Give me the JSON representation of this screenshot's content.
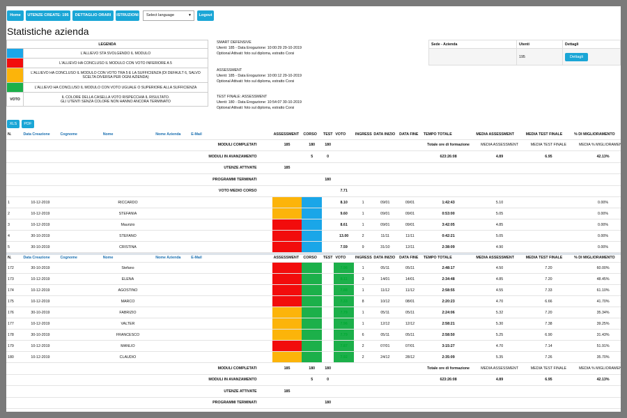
{
  "nav": {
    "home": "Home",
    "utenze": "UTENZE CREATE: 195",
    "dettaglio": "DETTAGLIO ORARI",
    "istruzioni": "ISTRUZIONI",
    "language": "Select language",
    "logout": "Logout"
  },
  "title": "Statistiche azienda",
  "legend": {
    "title": "LEGENDA",
    "items": [
      {
        "color": "#1aa6e8",
        "text": "L'ALLIEVO STA SVOLGENDO IL MODULO"
      },
      {
        "color": "#f20c0c",
        "text": "L'ALLIEVO HA CONCLUSO IL MODULO CON VOTO INFERIORE A 5"
      },
      {
        "color": "#fcb40a",
        "text": "L'ALLIEVO HA CONCLUSO IL MODULO CON VOTO TRA 5 E LA SUFFICIENZA (DI DEFAULT 6, SALVO SCELTA DIVERSA PER OGNI AZIENDA)"
      },
      {
        "color": "#1cb04a",
        "text": "L'ALLIEVO HA CONCLUSO IL MODULO CON VOTO UGUALE O SUPERIORE ALLA SUFFICIENZA"
      }
    ],
    "voto_label": "VOTO",
    "voto_text": "IL COLORE DELLA CASELLA VOTO RISPECCHIA IL RISULTATO.",
    "voto_text2": "GLI UTENTI SENZA COLORE NON HANNO ANCORA TERMINATO"
  },
  "courses": [
    {
      "name": "SMART DEFENSIVE",
      "line1": "Utenti: 185 - Data Erogazione: 10:00:29 29-10-2019",
      "line2": "Optional Attivati: foto sul diploma, estratto Corsi"
    },
    {
      "name": "ASSESSMENT",
      "line1": "Utenti: 185 - Data Erogazione: 10:00:12 29-10-2019",
      "line2": "Optional Attivati: foto sul diploma, estratto Corsi"
    },
    {
      "name": "TEST FINALE: ASSESSMENT",
      "line1": "Utenti: 180 - Data Erogazione: 10:54:07 30-10-2019",
      "line2": "Optional Attivati: foto sul diploma, estratto Corsi"
    }
  ],
  "sede": {
    "h1": "Sede - Azienda",
    "h2": "Utenti",
    "h3": "Dettagli",
    "utenti": "195",
    "btn": "Dettagli"
  },
  "export": {
    "xls": "XLS",
    "pdf": "PDF"
  },
  "headers": {
    "n": "N.",
    "data": "Data Creazione",
    "cognome": "Cognome",
    "nome": "Nome",
    "azienda": "Nome Azienda",
    "email": "E-Mail",
    "assessment": "ASSESSMENT",
    "corso": "CORSO",
    "test": "TEST",
    "voto": "VOTO",
    "ingressi": "INGRESSI",
    "inizio": "DATA INIZIO",
    "fine": "DATA FINE",
    "tempo": "TEMPO TOTALE",
    "media_ass": "MEDIA ASSESSMENT",
    "media_test": "MEDIA TEST FINALE",
    "migl": "% DI MIGLIORAMENTO"
  },
  "summary": {
    "completati": "MODULI COMPLETATI",
    "avanzamento": "MODULI IN AVANZAMENTO",
    "utenze": "UTENZE ATTIVATE",
    "programmi": "PROGRAMMI TERMINATI",
    "voto_medio": "VOTO MEDIO CORSO",
    "ass_c": "185",
    "cor_c": "180",
    "tes_c": "180",
    "cor_a": "5",
    "tes_a": "0",
    "ut_att": "185",
    "prog_t": "180",
    "voto_m": "7.71",
    "tot_label": "Totale ore di formazione",
    "tot_val": "623:26:08",
    "m_ass_label": "MEDIA ASSESSMENT",
    "m_ass_val": "4.89",
    "m_test_label": "MEDIA TEST FINALE",
    "m_test_val": "6.95",
    "m_migl_label": "MEDIA % MIGLIORAMENTO",
    "m_migl_val": "42.13%"
  },
  "rows_top": [
    {
      "n": "1",
      "data": "10-12-2019",
      "nome": "RICCARDO",
      "ass": "#fcb40a",
      "cor": "#1aa6e8",
      "voto": "8.10",
      "vc": "",
      "ing": "1",
      "ini": "09/01",
      "fin": "09/01",
      "tempo": "1:42:43",
      "ma": "5.10",
      "mt": "",
      "mg": "0.00%"
    },
    {
      "n": "2",
      "data": "10-12-2019",
      "nome": "STEFANIA",
      "ass": "#fcb40a",
      "cor": "#1aa6e8",
      "voto": "9.60",
      "vc": "",
      "ing": "1",
      "ini": "09/01",
      "fin": "09/01",
      "tempo": "0:53:00",
      "ma": "5.05",
      "mt": "",
      "mg": "0.00%"
    },
    {
      "n": "3",
      "data": "10-12-2019",
      "nome": "Maurizio",
      "ass": "#f20c0c",
      "cor": "#1aa6e8",
      "voto": "8.61",
      "vc": "",
      "ing": "1",
      "ini": "09/01",
      "fin": "09/01",
      "tempo": "3:42:05",
      "ma": "4.85",
      "mt": "",
      "mg": "0.00%"
    },
    {
      "n": "4",
      "data": "30-10-2019",
      "nome": "STEFANO",
      "ass": "#f20c0c",
      "cor": "#1aa6e8",
      "voto": "13.00",
      "vc": "",
      "ing": "2",
      "ini": "11/11",
      "fin": "11/11",
      "tempo": "0:42:21",
      "ma": "5.05",
      "mt": "",
      "mg": "0.00%"
    },
    {
      "n": "5",
      "data": "30-10-2019",
      "nome": "CRISTINA",
      "ass": "#f20c0c",
      "cor": "#1aa6e8",
      "voto": "7.59",
      "vc": "",
      "ing": "9",
      "ini": "31/10",
      "fin": "12/11",
      "tempo": "2:38:09",
      "ma": "4.90",
      "mt": "",
      "mg": "0.00%"
    }
  ],
  "rows_bottom": [
    {
      "n": "172",
      "data": "30-10-2019",
      "nome": "Stefano",
      "ass": "#f20c0c",
      "cor": "#1cb04a",
      "voto": "7.96",
      "vc": "#1cb04a",
      "ing": "1",
      "ini": "05/11",
      "fin": "05/11",
      "tempo": "2:48:17",
      "ma": "4.50",
      "mt": "7.20",
      "mg": "60.00%"
    },
    {
      "n": "173",
      "data": "10-12-2019",
      "nome": "ELENA",
      "ass": "#f20c0c",
      "cor": "#1cb04a",
      "voto": "8.11",
      "vc": "#1cb04a",
      "ing": "3",
      "ini": "14/01",
      "fin": "14/01",
      "tempo": "2:34:48",
      "ma": "4.85",
      "mt": "7.20",
      "mg": "48.45%"
    },
    {
      "n": "174",
      "data": "10-12-2019",
      "nome": "AGOSTINO",
      "ass": "#f20c0c",
      "cor": "#1cb04a",
      "voto": "7.88",
      "vc": "#1cb04a",
      "ing": "1",
      "ini": "11/12",
      "fin": "11/12",
      "tempo": "2:58:55",
      "ma": "4.55",
      "mt": "7.33",
      "mg": "61.10%"
    },
    {
      "n": "175",
      "data": "10-12-2019",
      "nome": "MARCO",
      "ass": "#f20c0c",
      "cor": "#1cb04a",
      "voto": "7.33",
      "vc": "#1cb04a",
      "ing": "8",
      "ini": "10/12",
      "fin": "08/01",
      "tempo": "2:20:23",
      "ma": "4.70",
      "mt": "6.66",
      "mg": "41.70%"
    },
    {
      "n": "176",
      "data": "30-10-2019",
      "nome": "FABRIZIO",
      "ass": "#fcb40a",
      "cor": "#1cb04a",
      "voto": "7.79",
      "vc": "#1cb04a",
      "ing": "1",
      "ini": "05/11",
      "fin": "05/11",
      "tempo": "2:24:06",
      "ma": "5.32",
      "mt": "7.20",
      "mg": "35.34%"
    },
    {
      "n": "177",
      "data": "10-12-2019",
      "nome": "VALTER",
      "ass": "#fcb40a",
      "cor": "#1cb04a",
      "voto": "7.96",
      "vc": "#1cb04a",
      "ing": "1",
      "ini": "12/12",
      "fin": "12/12",
      "tempo": "2:58:21",
      "ma": "5.30",
      "mt": "7.38",
      "mg": "39.25%"
    },
    {
      "n": "178",
      "data": "30-10-2019",
      "nome": "FRANCESCO",
      "ass": "#fcb40a",
      "cor": "#1cb04a",
      "voto": "7.79",
      "vc": "#1cb04a",
      "ing": "6",
      "ini": "05/11",
      "fin": "05/11",
      "tempo": "2:58:50",
      "ma": "5.25",
      "mt": "6.90",
      "mg": "31.43%"
    },
    {
      "n": "179",
      "data": "10-12-2019",
      "nome": "MANLIO",
      "ass": "#f20c0c",
      "cor": "#1cb04a",
      "voto": "7.87",
      "vc": "#1cb04a",
      "ing": "2",
      "ini": "07/01",
      "fin": "07/01",
      "tempo": "3:15:27",
      "ma": "4.70",
      "mt": "7.14",
      "mg": "51.91%"
    },
    {
      "n": "180",
      "data": "10-12-2019",
      "nome": "CLAUDIO",
      "ass": "#fcb40a",
      "cor": "#1cb04a",
      "voto": "7.92",
      "vc": "#1cb04a",
      "ing": "2",
      "ini": "24/12",
      "fin": "28/12",
      "tempo": "2:35:09",
      "ma": "5.35",
      "mt": "7.26",
      "mg": "35.70%"
    }
  ]
}
